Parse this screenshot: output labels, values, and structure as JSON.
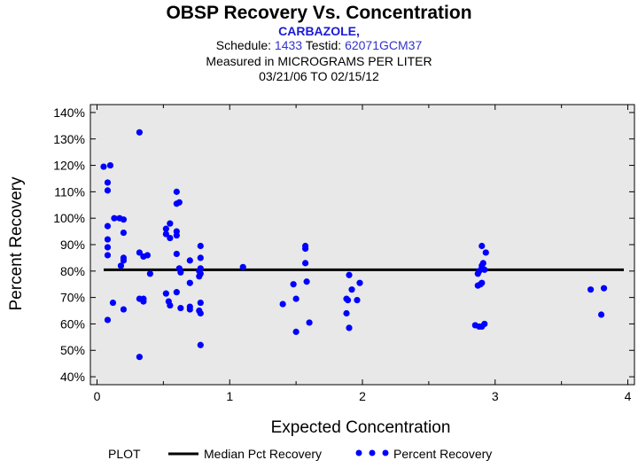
{
  "header": {
    "title": "OBSP Recovery Vs. Concentration",
    "compound": "CARBAZOLE,",
    "schedule_label": "Schedule:",
    "schedule_value": "1433",
    "testid_label": "Testid:",
    "testid_value": "62071GCM37",
    "measured": "Measured in  MICROGRAMS PER LITER",
    "date_range": "03/21/06 TO 02/15/12"
  },
  "legend": {
    "plot_label": "PLOT",
    "median_label": "Median Pct Recovery",
    "points_label": "Percent Recovery"
  },
  "colors": {
    "points": "#0000ff",
    "median": "#000000",
    "plot_bg": "#e8e8e8"
  },
  "chart_data": {
    "type": "scatter",
    "title": "OBSP Recovery Vs. Concentration",
    "xlabel": "Expected Concentration",
    "ylabel": "Percent Recovery",
    "xlim": [
      -0.05,
      4.05
    ],
    "ylim": [
      37,
      143
    ],
    "x_ticks": [
      0,
      1,
      2,
      3,
      4
    ],
    "x_tick_labels": [
      "0",
      "1",
      "2",
      "3",
      "4"
    ],
    "y_ticks": [
      40,
      50,
      60,
      70,
      80,
      90,
      100,
      110,
      120,
      130,
      140
    ],
    "y_tick_labels": [
      "40%",
      "50%",
      "60%",
      "70%",
      "80%",
      "90%",
      "100%",
      "110%",
      "120%",
      "130%",
      "140%"
    ],
    "median": 80.5,
    "series": [
      {
        "name": "Percent Recovery",
        "points": [
          [
            0.05,
            119.5
          ],
          [
            0.1,
            120
          ],
          [
            0.08,
            113.5
          ],
          [
            0.08,
            110.5
          ],
          [
            0.08,
            97
          ],
          [
            0.08,
            92
          ],
          [
            0.08,
            89
          ],
          [
            0.08,
            86
          ],
          [
            0.08,
            61.5
          ],
          [
            0.12,
            68
          ],
          [
            0.13,
            100
          ],
          [
            0.17,
            100
          ],
          [
            0.2,
            99.5
          ],
          [
            0.2,
            94.5
          ],
          [
            0.18,
            82
          ],
          [
            0.2,
            85
          ],
          [
            0.2,
            84
          ],
          [
            0.2,
            65.5
          ],
          [
            0.32,
            132.5
          ],
          [
            0.32,
            87
          ],
          [
            0.35,
            85.5
          ],
          [
            0.38,
            86
          ],
          [
            0.4,
            79
          ],
          [
            0.32,
            69.5
          ],
          [
            0.35,
            69.5
          ],
          [
            0.35,
            68.5
          ],
          [
            0.32,
            47.5
          ],
          [
            0.52,
            96
          ],
          [
            0.52,
            94
          ],
          [
            0.55,
            92.5
          ],
          [
            0.55,
            98
          ],
          [
            0.52,
            71.5
          ],
          [
            0.54,
            68.5
          ],
          [
            0.55,
            67
          ],
          [
            0.6,
            110
          ],
          [
            0.62,
            106
          ],
          [
            0.6,
            105.5
          ],
          [
            0.6,
            95
          ],
          [
            0.6,
            93.5
          ],
          [
            0.6,
            86.5
          ],
          [
            0.62,
            81
          ],
          [
            0.63,
            79.5
          ],
          [
            0.6,
            72
          ],
          [
            0.63,
            66
          ],
          [
            0.7,
            84
          ],
          [
            0.7,
            75.5
          ],
          [
            0.7,
            66.5
          ],
          [
            0.7,
            65.5
          ],
          [
            0.78,
            89.5
          ],
          [
            0.78,
            85
          ],
          [
            0.78,
            81
          ],
          [
            0.77,
            80
          ],
          [
            0.78,
            79
          ],
          [
            0.77,
            78
          ],
          [
            0.78,
            68
          ],
          [
            0.77,
            65
          ],
          [
            0.78,
            64
          ],
          [
            0.78,
            52
          ],
          [
            1.1,
            81.5
          ],
          [
            1.4,
            67.5
          ],
          [
            1.48,
            75
          ],
          [
            1.5,
            69.5
          ],
          [
            1.5,
            57
          ],
          [
            1.57,
            89.5
          ],
          [
            1.57,
            88.5
          ],
          [
            1.57,
            83
          ],
          [
            1.58,
            76
          ],
          [
            1.6,
            60.5
          ],
          [
            1.88,
            64
          ],
          [
            1.88,
            69.5
          ],
          [
            1.89,
            69
          ],
          [
            1.9,
            78.5
          ],
          [
            1.92,
            73
          ],
          [
            1.9,
            58.5
          ],
          [
            1.96,
            69
          ],
          [
            1.98,
            75.5
          ],
          [
            2.85,
            59.5
          ],
          [
            2.88,
            59
          ],
          [
            2.9,
            59
          ],
          [
            2.92,
            60
          ],
          [
            2.87,
            74.5
          ],
          [
            2.89,
            75
          ],
          [
            2.9,
            75.5
          ],
          [
            2.87,
            79
          ],
          [
            2.88,
            80
          ],
          [
            2.9,
            81
          ],
          [
            2.9,
            82
          ],
          [
            2.91,
            83
          ],
          [
            2.92,
            80.5
          ],
          [
            2.9,
            89.5
          ],
          [
            2.93,
            87
          ],
          [
            3.72,
            73
          ],
          [
            3.8,
            63.5
          ],
          [
            3.82,
            73.5
          ]
        ]
      }
    ]
  }
}
